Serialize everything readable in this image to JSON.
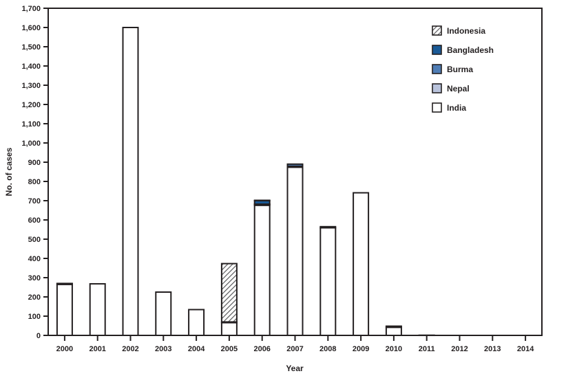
{
  "chart_data": {
    "type": "bar",
    "stacked": true,
    "title": "",
    "xlabel": "Year",
    "ylabel": "No. of cases",
    "ylim": [
      0,
      1700
    ],
    "ytick_step": 100,
    "grid": false,
    "legend_position": "top-right",
    "categories": [
      "2000",
      "2001",
      "2002",
      "2003",
      "2004",
      "2005",
      "2006",
      "2007",
      "2008",
      "2009",
      "2010",
      "2011",
      "2012",
      "2013",
      "2014"
    ],
    "series": [
      {
        "name": "India",
        "color": "#ffffff",
        "values": [
          265,
          268,
          1600,
          225,
          134,
          66,
          676,
          874,
          559,
          741,
          42,
          1,
          0,
          0,
          0
        ]
      },
      {
        "name": "Nepal",
        "color": "#b9c3dc",
        "values": [
          4,
          0,
          0,
          0,
          0,
          4,
          5,
          5,
          6,
          0,
          6,
          0,
          0,
          0,
          0
        ]
      },
      {
        "name": "Burma",
        "color": "#4f7db5",
        "values": [
          0,
          0,
          0,
          0,
          0,
          0,
          1,
          11,
          0,
          0,
          0,
          0,
          0,
          0,
          0
        ]
      },
      {
        "name": "Bangladesh",
        "color": "#1a5a96",
        "values": [
          1,
          0,
          0,
          0,
          0,
          0,
          18,
          0,
          0,
          0,
          0,
          0,
          0,
          0,
          0
        ]
      },
      {
        "name": "Indonesia",
        "color": "hatch",
        "values": [
          0,
          0,
          0,
          0,
          0,
          303,
          2,
          0,
          0,
          0,
          0,
          0,
          0,
          0,
          0
        ]
      }
    ],
    "legend": [
      "Indonesia",
      "Bangladesh",
      "Burma",
      "Nepal",
      "India"
    ],
    "colors": {
      "axis": "#231f20",
      "text": "#231f20",
      "hatch_stripe": "#58595b",
      "background": "#ffffff"
    }
  }
}
